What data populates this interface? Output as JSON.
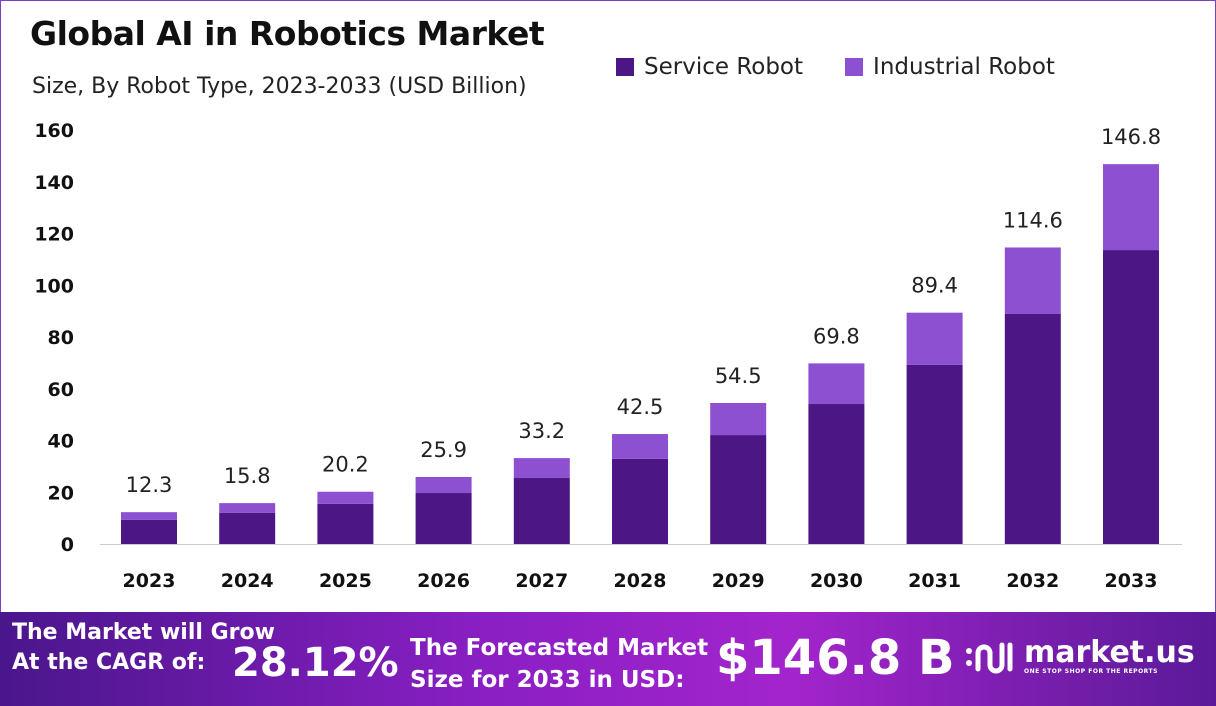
{
  "title": "Global AI in Robotics Market",
  "subtitle": "Size, By Robot Type, 2023-2033 (USD Billion)",
  "colors": {
    "service": "#4c1785",
    "industrial": "#8d50d0",
    "axis": "#cccccc"
  },
  "chart_data": {
    "type": "bar",
    "stacked": true,
    "categories": [
      "2023",
      "2024",
      "2025",
      "2026",
      "2027",
      "2028",
      "2029",
      "2030",
      "2031",
      "2032",
      "2033"
    ],
    "series": [
      {
        "name": "Service Robot",
        "values": [
          9.3,
          12.0,
          15.5,
          19.7,
          25.5,
          32.9,
          42.1,
          54.1,
          69.2,
          88.9,
          113.6
        ]
      },
      {
        "name": "Industrial Robot",
        "values": [
          3.0,
          3.8,
          4.7,
          6.2,
          7.7,
          9.6,
          12.4,
          15.7,
          20.2,
          25.7,
          33.2
        ]
      }
    ],
    "totals": [
      "12.3",
      "15.8",
      "20.2",
      "25.9",
      "33.2",
      "42.5",
      "54.5",
      "69.8",
      "89.4",
      "114.6",
      "146.8"
    ],
    "ylim": [
      0,
      160
    ],
    "yticks": [
      "0",
      "20",
      "40",
      "60",
      "80",
      "100",
      "120",
      "140",
      "160"
    ],
    "grid": false,
    "legend_position": "top-right"
  },
  "footer": {
    "grow_line1": "The Market will Grow",
    "grow_line2": "At the CAGR of:",
    "cagr": "28.12%",
    "forecast_line1": "The Forecasted Market",
    "forecast_line2": "Size for 2033 in USD:",
    "forecast_value": "$146.8 B",
    "logo_name": "market.us",
    "logo_tagline": "ONE STOP SHOP FOR THE REPORTS"
  }
}
